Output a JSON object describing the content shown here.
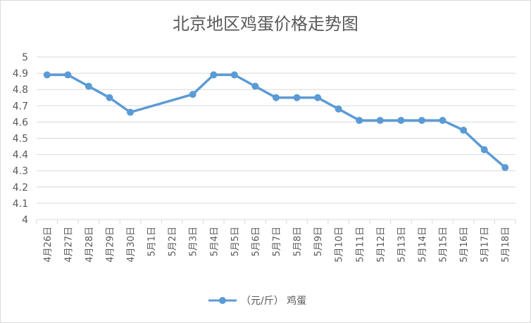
{
  "chart_data": {
    "type": "line",
    "title": "北京地区鸡蛋价格走势图",
    "categories": [
      "4月26日",
      "4月27日",
      "4月28日",
      "4月29日",
      "4月30日",
      "5月1日",
      "5月2日",
      "5月3日",
      "5月4日",
      "5月5日",
      "5月6日",
      "5月7日",
      "5月8日",
      "5月9日",
      "5月10日",
      "5月11日",
      "5月12日",
      "5月13日",
      "5月14日",
      "5月15日",
      "5月16日",
      "5月17日",
      "5月18日"
    ],
    "series": [
      {
        "name": "（元/斤） 鸡蛋",
        "values": [
          4.89,
          4.89,
          4.82,
          4.75,
          4.66,
          null,
          null,
          4.77,
          4.89,
          4.89,
          4.82,
          4.75,
          4.75,
          4.75,
          4.68,
          4.61,
          4.61,
          4.61,
          4.61,
          4.61,
          4.55,
          4.43,
          4.32
        ]
      }
    ],
    "yticks": [
      "5",
      "4.9",
      "4.8",
      "4.7",
      "4.6",
      "4.5",
      "4.4",
      "4.3",
      "4.2",
      "4.1",
      "4"
    ],
    "ylim": [
      4,
      5
    ],
    "grid": true,
    "legend_position": "bottom",
    "colors": {
      "series": "#5b9bd5",
      "grid": "#d9d9d9",
      "text": "#595959"
    }
  }
}
